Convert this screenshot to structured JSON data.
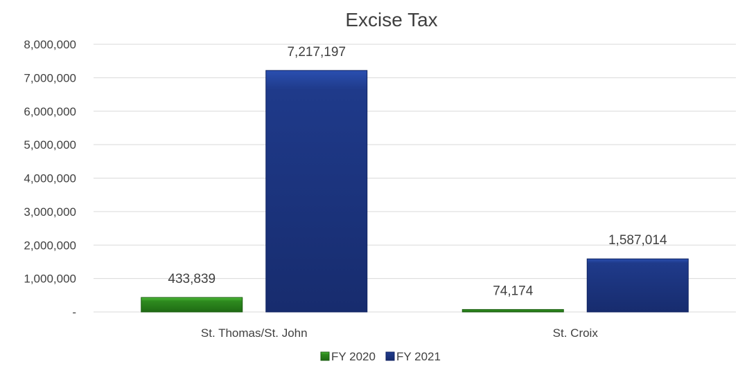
{
  "chart_data": {
    "type": "bar",
    "title": "Excise Tax",
    "categories": [
      "St. Thomas/St. John",
      "St. Croix"
    ],
    "series": [
      {
        "name": "FY 2020",
        "values": [
          433839,
          74174
        ],
        "labels": [
          "433,839",
          "74,174"
        ],
        "color": "#2e8b1f"
      },
      {
        "name": "FY 2021",
        "values": [
          7217197,
          1587014
        ],
        "labels": [
          "7,217,197",
          "1,587,014"
        ],
        "color": "#1f3a8a"
      }
    ],
    "ylim": [
      0,
      8000000
    ],
    "yticks": [
      0,
      1000000,
      2000000,
      3000000,
      4000000,
      5000000,
      6000000,
      7000000,
      8000000
    ],
    "ytick_labels": [
      "-",
      "1,000,000",
      "2,000,000",
      "3,000,000",
      "4,000,000",
      "5,000,000",
      "6,000,000",
      "7,000,000",
      "8,000,000"
    ],
    "xlabel": "",
    "ylabel": "",
    "grid": true,
    "legend": "bottom"
  }
}
